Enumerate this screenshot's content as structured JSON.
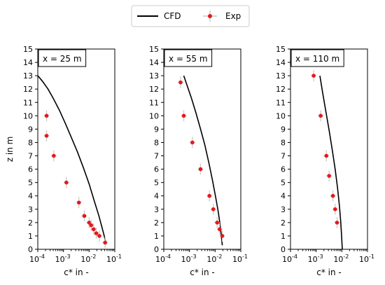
{
  "legend": {
    "cfd_label": "CFD",
    "exp_label": "Exp"
  },
  "colors": {
    "cfd": "#000000",
    "exp": "#e41a1c",
    "errorbar": "#c8c8c8"
  },
  "chart_data": [
    {
      "type": "scatter",
      "title": "x = 25 m",
      "xlabel": "c* in -",
      "ylabel": "z in m",
      "xscale": "log",
      "xlim": [
        0.0001,
        0.1
      ],
      "ylim": [
        0,
        15
      ],
      "xticks": [
        0.0001,
        0.001,
        0.01,
        0.1
      ],
      "xtick_labels": [
        [
          "10",
          "-4"
        ],
        [
          "10",
          "-3"
        ],
        [
          "10",
          "-2"
        ],
        [
          "10",
          "-1"
        ]
      ],
      "yticks": [
        0,
        1,
        2,
        3,
        4,
        5,
        6,
        7,
        8,
        9,
        10,
        11,
        12,
        13,
        14,
        15
      ],
      "grid": false,
      "legend_position": "top-center",
      "series": [
        {
          "name": "CFD",
          "kind": "line",
          "x": [
            0.0001,
            0.00015,
            0.00025,
            0.0004,
            0.0007,
            0.0012,
            0.002,
            0.0035,
            0.006,
            0.01,
            0.016,
            0.024,
            0.032,
            0.04,
            0.046
          ],
          "y": [
            13.0,
            12.6,
            12.0,
            11.3,
            10.4,
            9.4,
            8.4,
            7.3,
            6.1,
            4.9,
            3.6,
            2.5,
            1.6,
            0.9,
            0.4
          ]
        },
        {
          "name": "Exp",
          "kind": "points",
          "x": [
            0.00022,
            0.00022,
            0.00042,
            0.0013,
            0.004,
            0.0065,
            0.01,
            0.012,
            0.015,
            0.019,
            0.025,
            0.042
          ],
          "y": [
            10.0,
            8.5,
            7.0,
            5.0,
            3.5,
            2.5,
            2.0,
            1.8,
            1.5,
            1.2,
            1.0,
            0.5
          ]
        }
      ]
    },
    {
      "type": "scatter",
      "title": "x = 55 m",
      "xlabel": "c* in -",
      "ylabel": "",
      "xscale": "log",
      "xlim": [
        0.0001,
        0.1
      ],
      "ylim": [
        0,
        15
      ],
      "xticks": [
        0.0001,
        0.001,
        0.01,
        0.1
      ],
      "xtick_labels": [
        [
          "10",
          "-4"
        ],
        [
          "10",
          "-3"
        ],
        [
          "10",
          "-2"
        ],
        [
          "10",
          "-1"
        ]
      ],
      "yticks": [
        0,
        1,
        2,
        3,
        4,
        5,
        6,
        7,
        8,
        9,
        10,
        11,
        12,
        13,
        14,
        15
      ],
      "grid": false,
      "series": [
        {
          "name": "CFD",
          "kind": "line",
          "x": [
            0.0006,
            0.0008,
            0.0012,
            0.0018,
            0.0027,
            0.004,
            0.0058,
            0.008,
            0.0105,
            0.013,
            0.0155,
            0.0175,
            0.019
          ],
          "y": [
            13.0,
            12.3,
            11.3,
            10.2,
            9.0,
            7.8,
            6.4,
            5.1,
            3.9,
            2.9,
            1.9,
            1.0,
            0.3
          ]
        },
        {
          "name": "Exp",
          "kind": "points",
          "x": [
            0.00045,
            0.0006,
            0.0013,
            0.0027,
            0.006,
            0.0085,
            0.012,
            0.015,
            0.019
          ],
          "y": [
            12.5,
            10.0,
            8.0,
            6.0,
            4.0,
            3.0,
            2.0,
            1.5,
            1.0
          ]
        }
      ]
    },
    {
      "type": "scatter",
      "title": "x = 110 m",
      "xlabel": "c* in -",
      "ylabel": "",
      "xscale": "log",
      "xlim": [
        0.0001,
        0.1
      ],
      "ylim": [
        0,
        15
      ],
      "xticks": [
        0.0001,
        0.001,
        0.01,
        0.1
      ],
      "xtick_labels": [
        [
          "10",
          "-4"
        ],
        [
          "10",
          "-3"
        ],
        [
          "10",
          "-2"
        ],
        [
          "10",
          "-1"
        ]
      ],
      "yticks": [
        0,
        1,
        2,
        3,
        4,
        5,
        6,
        7,
        8,
        9,
        10,
        11,
        12,
        13,
        14,
        15
      ],
      "grid": false,
      "series": [
        {
          "name": "CFD",
          "kind": "line",
          "x": [
            0.0014,
            0.0018,
            0.0024,
            0.0032,
            0.0042,
            0.0055,
            0.0068,
            0.008,
            0.009,
            0.0098,
            0.0104
          ],
          "y": [
            13.0,
            11.7,
            10.3,
            8.9,
            7.5,
            6.0,
            4.6,
            3.3,
            2.1,
            1.0,
            0.0
          ]
        },
        {
          "name": "Exp",
          "kind": "points",
          "x": [
            0.0008,
            0.0015,
            0.0025,
            0.0032,
            0.0045,
            0.0055,
            0.0065
          ],
          "y": [
            13.0,
            10.0,
            7.0,
            5.5,
            4.0,
            3.0,
            2.0
          ]
        }
      ]
    }
  ]
}
